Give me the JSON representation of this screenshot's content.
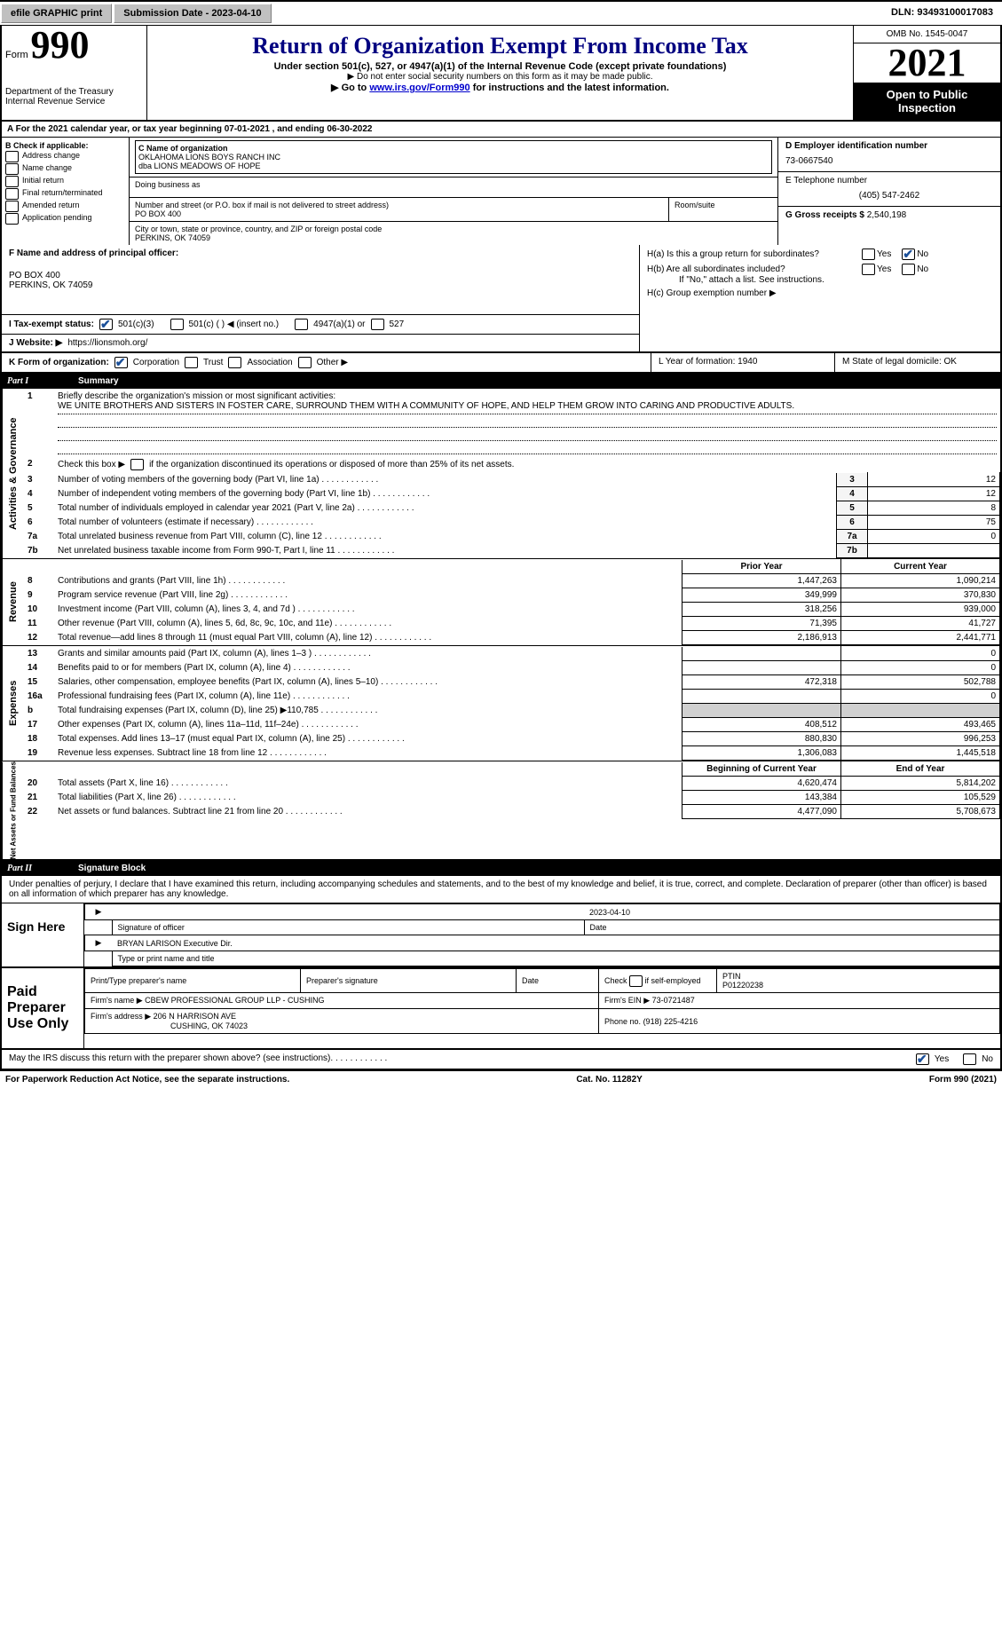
{
  "topbar": {
    "efile": "efile GRAPHIC print",
    "subdate_lbl": "Submission Date - 2023-04-10",
    "dln": "DLN: 93493100017083"
  },
  "header": {
    "form_prefix": "Form",
    "form_no": "990",
    "dept": "Department of the Treasury",
    "irs": "Internal Revenue Service",
    "title": "Return of Organization Exempt From Income Tax",
    "line1": "Under section 501(c), 527, or 4947(a)(1) of the Internal Revenue Code (except private foundations)",
    "line2": "▶ Do not enter social security numbers on this form as it may be made public.",
    "line3_pre": "▶ Go to ",
    "line3_link": "www.irs.gov/Form990",
    "line3_post": " for instructions and the latest information.",
    "omb": "OMB No. 1545-0047",
    "year": "2021",
    "insp1": "Open to Public",
    "insp2": "Inspection"
  },
  "a": "A For the 2021 calendar year, or tax year beginning 07-01-2021    , and ending 06-30-2022",
  "b": {
    "hdr": "B Check if applicable:",
    "items": [
      "Address change",
      "Name change",
      "Initial return",
      "Final return/terminated",
      "Amended return",
      "Application pending"
    ]
  },
  "c": {
    "lbl": "C Name of organization",
    "name1": "OKLAHOMA LIONS BOYS RANCH INC",
    "name2": "dba LIONS MEADOWS OF HOPE",
    "dba": "Doing business as",
    "street_lbl": "Number and street (or P.O. box if mail is not delivered to street address)",
    "street": "PO BOX 400",
    "room_lbl": "Room/suite",
    "city_lbl": "City or town, state or province, country, and ZIP or foreign postal code",
    "city": "PERKINS, OK  74059"
  },
  "d": {
    "lbl": "D Employer identification number",
    "val": "73-0667540"
  },
  "e": {
    "lbl": "E Telephone number",
    "val": "(405) 547-2462"
  },
  "g": {
    "lbl": "G Gross receipts $",
    "val": "2,540,198"
  },
  "f": {
    "lbl": "F  Name and address of principal officer:",
    "addr1": "PO BOX 400",
    "addr2": "PERKINS, OK  74059"
  },
  "h": {
    "a": "H(a)  Is this a group return for subordinates?",
    "b": "H(b)  Are all subordinates included?",
    "attach": "If \"No,\" attach a list. See instructions.",
    "c": "H(c)  Group exemption number ▶"
  },
  "i": {
    "lbl": "I   Tax-exempt status:",
    "o1": "501(c)(3)",
    "o2": "501(c) (  ) ◀ (insert no.)",
    "o3": "4947(a)(1) or",
    "o4": "527"
  },
  "j": {
    "lbl": "J   Website: ▶",
    "val": "https://lionsmoh.org/"
  },
  "k": {
    "lbl": "K Form of organization:",
    "o1": "Corporation",
    "o2": "Trust",
    "o3": "Association",
    "o4": "Other ▶",
    "l": "L Year of formation: 1940",
    "m": "M State of legal domicile: OK"
  },
  "part1": {
    "num": "Part I",
    "title": "Summary"
  },
  "summary": {
    "vtab_ag": "Activities & Governance",
    "l1_lbl": "Briefly describe the organization's mission or most significant activities:",
    "l1_txt": "WE UNITE BROTHERS AND SISTERS IN FOSTER CARE, SURROUND THEM WITH A COMMUNITY OF HOPE, AND HELP THEM GROW INTO CARING AND PRODUCTIVE ADULTS.",
    "l2": "Check this box ▶       if the organization discontinued its operations or disposed of more than 25% of its net assets.",
    "rows_ag": [
      {
        "n": "3",
        "t": "Number of voting members of the governing body (Part VI, line 1a)",
        "v": "12"
      },
      {
        "n": "4",
        "t": "Number of independent voting members of the governing body (Part VI, line 1b)",
        "v": "12"
      },
      {
        "n": "5",
        "t": "Total number of individuals employed in calendar year 2021 (Part V, line 2a)",
        "v": "8"
      },
      {
        "n": "6",
        "t": "Total number of volunteers (estimate if necessary)",
        "v": "75"
      },
      {
        "n": "7a",
        "t": "Total unrelated business revenue from Part VIII, column (C), line 12",
        "v": "0"
      },
      {
        "n": "7b",
        "t": "Net unrelated business taxable income from Form 990-T, Part I, line 11",
        "v": ""
      }
    ],
    "vtab_rev": "Revenue",
    "prior_hdr": "Prior Year",
    "curr_hdr": "Current Year",
    "rows_rev": [
      {
        "n": "8",
        "t": "Contributions and grants (Part VIII, line 1h)",
        "p": "1,447,263",
        "c": "1,090,214"
      },
      {
        "n": "9",
        "t": "Program service revenue (Part VIII, line 2g)",
        "p": "349,999",
        "c": "370,830"
      },
      {
        "n": "10",
        "t": "Investment income (Part VIII, column (A), lines 3, 4, and 7d )",
        "p": "318,256",
        "c": "939,000"
      },
      {
        "n": "11",
        "t": "Other revenue (Part VIII, column (A), lines 5, 6d, 8c, 9c, 10c, and 11e)",
        "p": "71,395",
        "c": "41,727"
      },
      {
        "n": "12",
        "t": "Total revenue—add lines 8 through 11 (must equal Part VIII, column (A), line 12)",
        "p": "2,186,913",
        "c": "2,441,771"
      }
    ],
    "vtab_exp": "Expenses",
    "rows_exp": [
      {
        "n": "13",
        "t": "Grants and similar amounts paid (Part IX, column (A), lines 1–3 )",
        "p": "",
        "c": "0"
      },
      {
        "n": "14",
        "t": "Benefits paid to or for members (Part IX, column (A), line 4)",
        "p": "",
        "c": "0"
      },
      {
        "n": "15",
        "t": "Salaries, other compensation, employee benefits (Part IX, column (A), lines 5–10)",
        "p": "472,318",
        "c": "502,788"
      },
      {
        "n": "16a",
        "t": "Professional fundraising fees (Part IX, column (A), line 11e)",
        "p": "",
        "c": "0"
      },
      {
        "n": "b",
        "t": "Total fundraising expenses (Part IX, column (D), line 25) ▶110,785",
        "p": "shade",
        "c": "shade"
      },
      {
        "n": "17",
        "t": "Other expenses (Part IX, column (A), lines 11a–11d, 11f–24e)",
        "p": "408,512",
        "c": "493,465"
      },
      {
        "n": "18",
        "t": "Total expenses. Add lines 13–17 (must equal Part IX, column (A), line 25)",
        "p": "880,830",
        "c": "996,253"
      },
      {
        "n": "19",
        "t": "Revenue less expenses. Subtract line 18 from line 12",
        "p": "1,306,083",
        "c": "1,445,518"
      }
    ],
    "vtab_na": "Net Assets or Fund Balances",
    "beg_hdr": "Beginning of Current Year",
    "end_hdr": "End of Year",
    "rows_na": [
      {
        "n": "20",
        "t": "Total assets (Part X, line 16)",
        "p": "4,620,474",
        "c": "5,814,202"
      },
      {
        "n": "21",
        "t": "Total liabilities (Part X, line 26)",
        "p": "143,384",
        "c": "105,529"
      },
      {
        "n": "22",
        "t": "Net assets or fund balances. Subtract line 21 from line 20",
        "p": "4,477,090",
        "c": "5,708,673"
      }
    ]
  },
  "part2": {
    "num": "Part II",
    "title": "Signature Block"
  },
  "jurat": "Under penalties of perjury, I declare that I have examined this return, including accompanying schedules and statements, and to the best of my knowledge and belief, it is true, correct, and complete. Declaration of preparer (other than officer) is based on all information of which preparer has any knowledge.",
  "sign": {
    "sign_here": "Sign Here",
    "sig_lbl": "Signature of officer",
    "date_lbl": "Date",
    "date_val": "2023-04-10",
    "name_val": "BRYAN LARISON  Executive Dir.",
    "name_lbl": "Type or print name and title"
  },
  "preparer": {
    "paid": "Paid Preparer Use Only",
    "print_lbl": "Print/Type preparer's name",
    "sig_lbl": "Preparer's signature",
    "date_lbl": "Date",
    "check_lbl": "Check        if self-employed",
    "ptin_lbl": "PTIN",
    "ptin_val": "P01220238",
    "firm_name_lbl": "Firm's name ▶",
    "firm_name": "CBEW PROFESSIONAL GROUP LLP - CUSHING",
    "firm_ein_lbl": "Firm's EIN ▶",
    "firm_ein": "73-0721487",
    "firm_addr_lbl": "Firm's address ▶",
    "firm_addr1": "206 N HARRISON AVE",
    "firm_addr2": "CUSHING, OK  74023",
    "phone_lbl": "Phone no.",
    "phone": "(918) 225-4216"
  },
  "discuss": "May the IRS discuss this return with the preparer shown above? (see instructions)",
  "footer": {
    "left": "For Paperwork Reduction Act Notice, see the separate instructions.",
    "mid": "Cat. No. 11282Y",
    "right": "Form 990 (2021)"
  },
  "yes": "Yes",
  "no": "No"
}
